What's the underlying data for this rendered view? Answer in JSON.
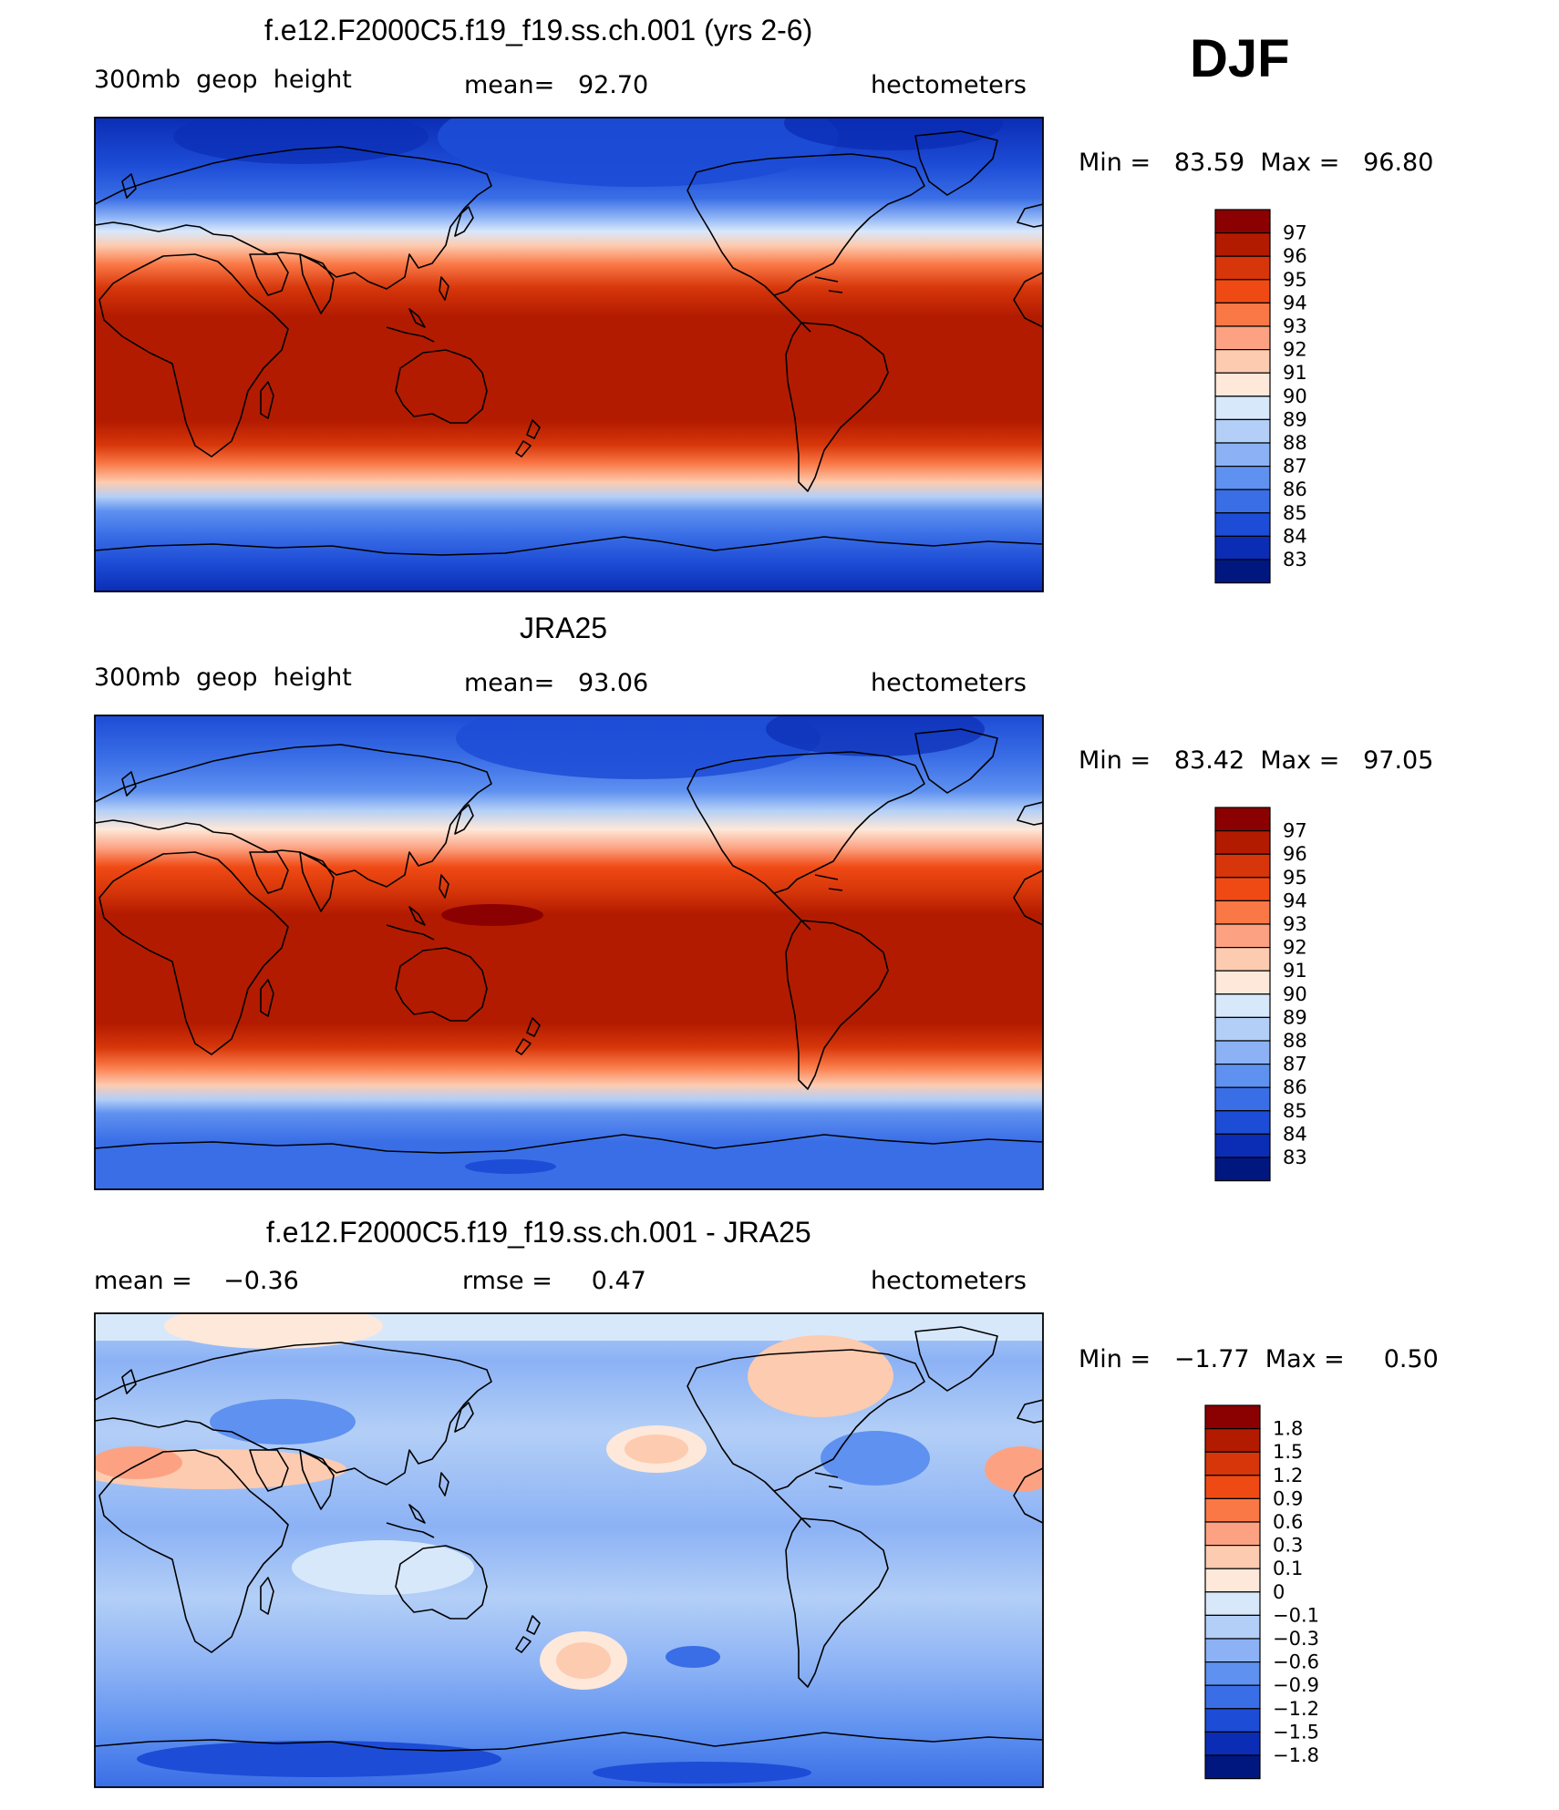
{
  "djf_label": "DJF",
  "panels": [
    {
      "title": "f.e12.F2000C5.f19_f19.ss.ch.001 (yrs 2-6)",
      "left_text": "300mb  geop  height",
      "center_text": "mean=   92.70",
      "right_text": "hectometers",
      "minmax_text": "Min =   83.59  Max =   96.80",
      "colorbar": {
        "labels": [
          "97",
          "96",
          "95",
          "94",
          "93",
          "92",
          "91",
          "90",
          "89",
          "88",
          "87",
          "86",
          "85",
          "84",
          "83"
        ],
        "colors": [
          "#8b0000",
          "#b31b00",
          "#d6360a",
          "#f04a14",
          "#fa7846",
          "#fca282",
          "#fdcbb0",
          "#fde8d9",
          "#d8e8fb",
          "#b3cff7",
          "#8cb2f5",
          "#5f91f0",
          "#3a6ee6",
          "#1d4cd6",
          "#0b2db5",
          "#001780"
        ]
      }
    },
    {
      "title": "JRA25",
      "left_text": "300mb  geop  height",
      "center_text": "mean=   93.06",
      "right_text": "hectometers",
      "minmax_text": "Min =   83.42  Max =   97.05",
      "colorbar": {
        "labels": [
          "97",
          "96",
          "95",
          "94",
          "93",
          "92",
          "91",
          "90",
          "89",
          "88",
          "87",
          "86",
          "85",
          "84",
          "83"
        ],
        "colors": [
          "#8b0000",
          "#b31b00",
          "#d6360a",
          "#f04a14",
          "#fa7846",
          "#fca282",
          "#fdcbb0",
          "#fde8d9",
          "#d8e8fb",
          "#b3cff7",
          "#8cb2f5",
          "#5f91f0",
          "#3a6ee6",
          "#1d4cd6",
          "#0b2db5",
          "#001780"
        ]
      }
    },
    {
      "title": "f.e12.F2000C5.f19_f19.ss.ch.001 - JRA25",
      "left_text": "mean =    −0.36",
      "center_text": "rmse =     0.47",
      "right_text": "hectometers",
      "minmax_text": "Min =   −1.77  Max =     0.50",
      "colorbar": {
        "labels": [
          "1.8",
          "1.5",
          "1.2",
          "0.9",
          "0.6",
          "0.3",
          "0.1",
          "0",
          "−0.1",
          "−0.3",
          "−0.6",
          "−0.9",
          "−1.2",
          "−1.5",
          "−1.8"
        ],
        "colors": [
          "#8b0000",
          "#b31b00",
          "#d6360a",
          "#f04a14",
          "#fa7846",
          "#fca282",
          "#fdcbb0",
          "#fde8d9",
          "#d8e8fb",
          "#b3cff7",
          "#8cb2f5",
          "#5f91f0",
          "#3a6ee6",
          "#1d4cd6",
          "#0b2db5",
          "#001780"
        ]
      }
    }
  ],
  "colors": {
    "frame": "#000000",
    "coast": "#000000"
  }
}
